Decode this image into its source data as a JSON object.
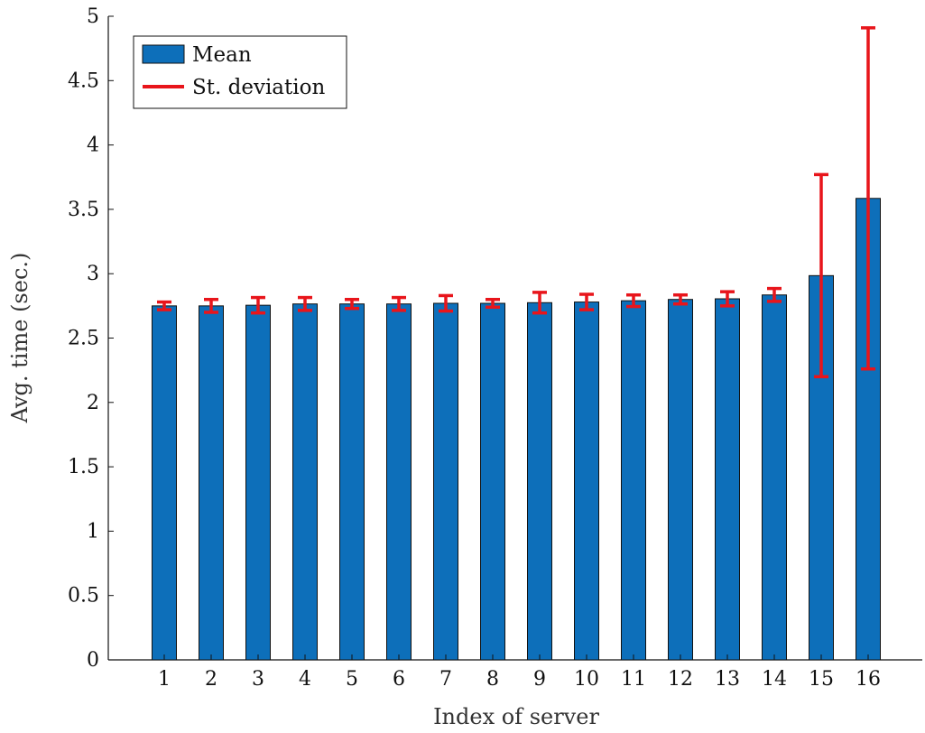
{
  "chart_data": {
    "type": "bar",
    "title": "",
    "xlabel": "Index of server",
    "ylabel": "Avg. time (sec.)",
    "categories": [
      "1",
      "2",
      "3",
      "4",
      "5",
      "6",
      "7",
      "8",
      "9",
      "10",
      "11",
      "12",
      "13",
      "14",
      "15",
      "16"
    ],
    "series": [
      {
        "name": "Mean",
        "color": "#0d6fba",
        "values": [
          2.75,
          2.75,
          2.755,
          2.765,
          2.765,
          2.765,
          2.77,
          2.77,
          2.775,
          2.78,
          2.79,
          2.8,
          2.805,
          2.835,
          2.985,
          3.585
        ]
      }
    ],
    "error_bars": {
      "name": "St. deviation",
      "color": "#e8151b",
      "values": [
        0.03,
        0.05,
        0.06,
        0.05,
        0.035,
        0.05,
        0.06,
        0.03,
        0.08,
        0.06,
        0.045,
        0.035,
        0.055,
        0.05,
        0.785,
        1.325
      ]
    },
    "ylim": [
      0,
      5
    ],
    "yticks": [
      "0",
      "0.5",
      "1",
      "1.5",
      "2",
      "2.5",
      "3",
      "3.5",
      "4",
      "4.5",
      "5"
    ],
    "grid": false,
    "legend_position": "top-left"
  },
  "legend": {
    "mean_label": "Mean",
    "std_label": "St. deviation"
  },
  "axes": {
    "xlabel": "Index of server",
    "ylabel": "Avg. time (sec.)"
  }
}
